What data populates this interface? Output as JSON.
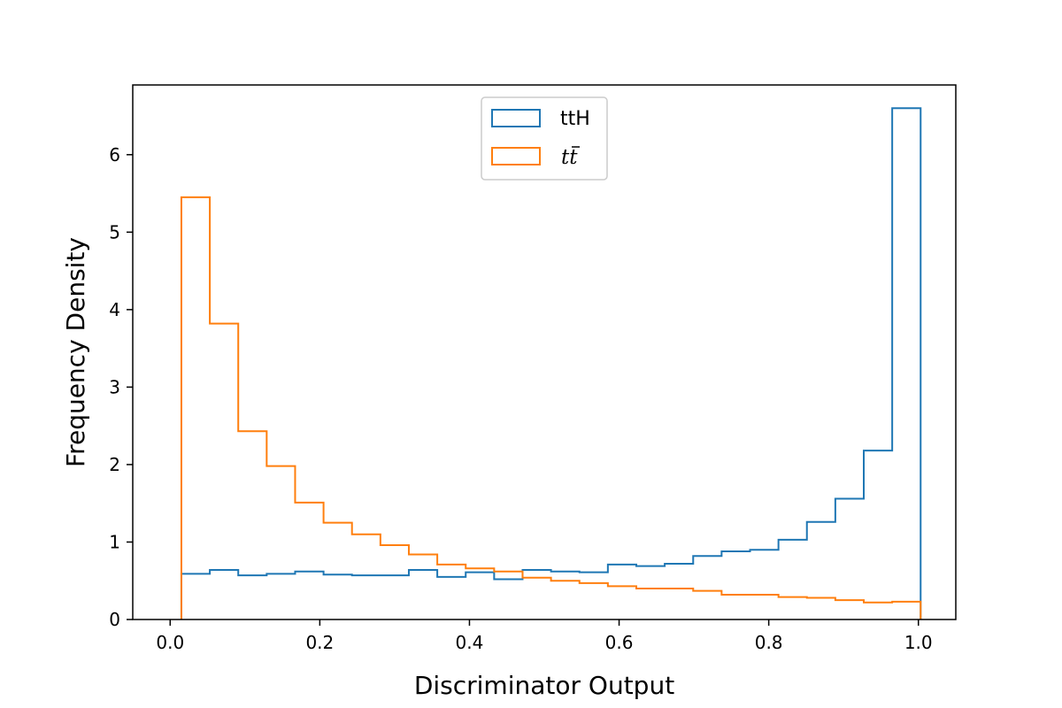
{
  "chart_data": {
    "type": "histogram",
    "title": "",
    "xlabel": "Discriminator Output",
    "ylabel": "Frequency Density",
    "xlim": [
      -0.05,
      1.05
    ],
    "ylim": [
      0,
      6.9
    ],
    "xticks": [
      "0.0",
      "0.2",
      "0.4",
      "0.6",
      "0.8",
      "1.0"
    ],
    "xtick_values": [
      0.0,
      0.2,
      0.4,
      0.6,
      0.8,
      1.0
    ],
    "yticks": [
      "0",
      "1",
      "2",
      "3",
      "4",
      "5",
      "6"
    ],
    "ytick_values": [
      0,
      1,
      2,
      3,
      4,
      5,
      6
    ],
    "grid": false,
    "legend_position": "upper-center",
    "bin_edges": [
      0.015,
      0.053,
      0.091,
      0.129,
      0.167,
      0.205,
      0.243,
      0.281,
      0.319,
      0.357,
      0.395,
      0.433,
      0.471,
      0.509,
      0.547,
      0.585,
      0.623,
      0.661,
      0.699,
      0.737,
      0.775,
      0.813,
      0.851,
      0.889,
      0.927,
      0.965,
      1.003
    ],
    "series": [
      {
        "name": "ttH",
        "color": "#1f77b4",
        "values": [
          0.59,
          0.64,
          0.57,
          0.59,
          0.62,
          0.58,
          0.57,
          0.57,
          0.64,
          0.55,
          0.61,
          0.52,
          0.64,
          0.62,
          0.61,
          0.71,
          0.69,
          0.72,
          0.82,
          0.88,
          0.9,
          1.03,
          1.26,
          1.56,
          2.18,
          6.6
        ]
      },
      {
        "name": "tt̄",
        "color": "#ff7f0e",
        "values": [
          5.45,
          3.82,
          2.43,
          1.98,
          1.51,
          1.25,
          1.1,
          0.96,
          0.84,
          0.71,
          0.66,
          0.62,
          0.54,
          0.5,
          0.47,
          0.43,
          0.4,
          0.4,
          0.37,
          0.32,
          0.32,
          0.29,
          0.28,
          0.25,
          0.22,
          0.23
        ]
      }
    ]
  },
  "legend": {
    "entries": [
      {
        "label": "ttH",
        "color": "#1f77b4"
      },
      {
        "label_base": "t",
        "label_bar": "t",
        "color": "#ff7f0e"
      }
    ]
  }
}
